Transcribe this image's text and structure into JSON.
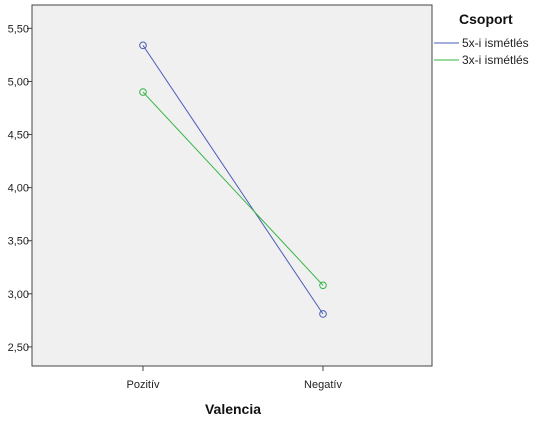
{
  "chart_data": {
    "type": "line",
    "categories": [
      "Pozitív",
      "Negatív"
    ],
    "series": [
      {
        "name": "5x-i ismétlés",
        "values": [
          5.34,
          2.81
        ],
        "color": "#4a5db5",
        "marker": "open-circle"
      },
      {
        "name": "3x-i ismétlés",
        "values": [
          4.9,
          3.08
        ],
        "color": "#35b545",
        "marker": "open-circle"
      }
    ],
    "xlabel": "Valencia",
    "ylabel": "",
    "ylim": [
      2.32,
      5.72
    ],
    "yticks": [
      "2,50",
      "3,00",
      "3,50",
      "4,00",
      "4,50",
      "5,00",
      "5,50"
    ],
    "ytick_values": [
      2.5,
      3.0,
      3.5,
      4.0,
      4.5,
      5.0,
      5.5
    ],
    "legend_title": "Csoport",
    "legend_position": "top-right-outside",
    "plot_background": "#f0f0f0",
    "grid": false
  }
}
